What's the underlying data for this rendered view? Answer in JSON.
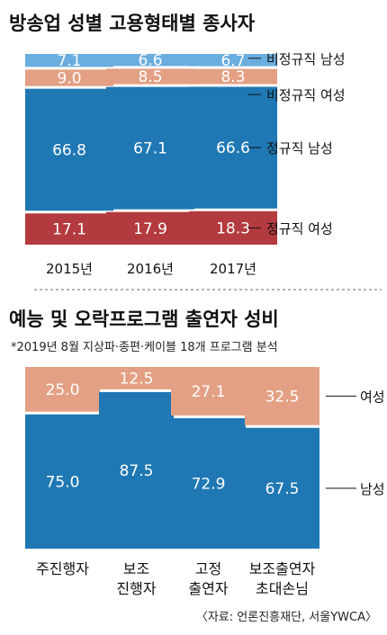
{
  "colors": {
    "regular_female": "#b33a3e",
    "regular_male": "#1f78b4",
    "nonregular_female": "#e3a084",
    "nonregular_male": "#6aaddf",
    "performer_male": "#1f78b4",
    "performer_female": "#e3a084",
    "legend_line": "#111111",
    "divider": "#888888"
  },
  "source": "〈자료: 언론진흥재단, 서울YWCA〉",
  "chart_data": [
    {
      "type": "bar",
      "stacked": true,
      "title": "방송업 성별 고용형태별 종사자",
      "categories": [
        "2015년",
        "2016년",
        "2017년"
      ],
      "series": [
        {
          "name": "정규직 여성",
          "values": [
            17.1,
            17.9,
            18.3
          ],
          "color": "#b33a3e"
        },
        {
          "name": "정규직 남성",
          "values": [
            66.8,
            67.1,
            66.6
          ],
          "color": "#1f78b4"
        },
        {
          "name": "비정규직 여성",
          "values": [
            9.0,
            8.5,
            8.3
          ],
          "color": "#e3a084"
        },
        {
          "name": "비정규직 남성",
          "values": [
            7.1,
            6.6,
            6.7
          ],
          "color": "#6aaddf"
        }
      ],
      "value_labels": [
        [
          "17.1",
          "17.9",
          "18.3"
        ],
        [
          "66.8",
          "67.1",
          "66.6"
        ],
        [
          "9.0",
          "8.5",
          "8.3"
        ],
        [
          "7.1",
          "6.6",
          "6.7"
        ]
      ],
      "ylim": [
        0,
        100
      ],
      "legend_placement": "right",
      "grid": false
    },
    {
      "type": "bar",
      "stacked": true,
      "title": "예능 및 오락프로그램 출연자 성비",
      "subtitle": "*2019년 8월 지상파·종편·케이블 18개 프로그램 분석",
      "categories": [
        "주진행자",
        "보조\n진행자",
        "고정\n출연자",
        "보조출연자\n초대손님"
      ],
      "series": [
        {
          "name": "남성",
          "values": [
            75.0,
            87.5,
            72.9,
            67.5
          ],
          "color": "#1f78b4"
        },
        {
          "name": "여성",
          "values": [
            25.0,
            12.5,
            27.1,
            32.5
          ],
          "color": "#e3a084"
        }
      ],
      "value_labels": [
        [
          "75.0",
          "87.5",
          "72.9",
          "67.5"
        ],
        [
          "25.0",
          "12.5",
          "27.1",
          "32.5"
        ]
      ],
      "ylim": [
        0,
        100
      ],
      "legend_placement": "right",
      "grid": false
    }
  ]
}
